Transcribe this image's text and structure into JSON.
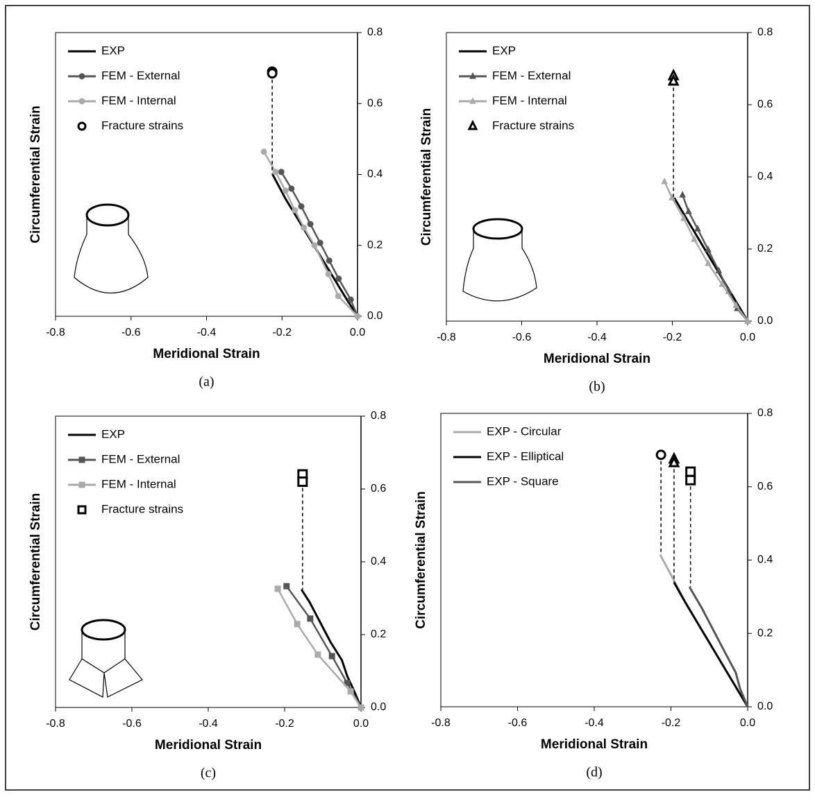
{
  "chart_data": [
    {
      "type": "line",
      "caption": "(a)",
      "xlabel": "Meridional Strain",
      "ylabel": "Circumferential Strain",
      "xlim": [
        -0.8,
        0
      ],
      "ylim": [
        0,
        0.8
      ],
      "xticks": [
        -0.8,
        -0.6,
        -0.4,
        -0.2,
        {
          "value": 0,
          "label": "0.0"
        }
      ],
      "yticks": [
        {
          "value": 0,
          "label": "0.0"
        },
        0.2,
        0.4,
        0.6,
        0.8
      ],
      "legend": "upper left",
      "series": [
        {
          "name": "EXP",
          "color": "#000000",
          "marker": "none",
          "line": true,
          "x": [
            0,
            -0.03,
            -0.07,
            -0.11,
            -0.15,
            -0.19,
            -0.225
          ],
          "values": [
            0,
            0.05,
            0.12,
            0.19,
            0.26,
            0.33,
            0.4
          ]
        },
        {
          "name": "FEM - External",
          "color": "#555555",
          "marker": "circle",
          "line": true,
          "x": [
            0,
            -0.018,
            -0.05,
            -0.075,
            -0.099,
            -0.125,
            -0.149,
            -0.175,
            -0.202
          ],
          "values": [
            0,
            0.047,
            0.106,
            0.157,
            0.207,
            0.26,
            0.31,
            0.36,
            0.407
          ]
        },
        {
          "name": "FEM - Internal",
          "color": "#aaaaaa",
          "marker": "circle",
          "line": true,
          "x": [
            0,
            -0.051,
            -0.077,
            -0.114,
            -0.142,
            -0.166,
            -0.191,
            -0.217,
            -0.248
          ],
          "values": [
            0,
            0.057,
            0.119,
            0.2,
            0.25,
            0.299,
            0.354,
            0.407,
            0.464
          ]
        },
        {
          "name": "Fracture strains",
          "color": "#000000",
          "marker": "circle",
          "line": false,
          "x": [
            -0.226,
            -0.226
          ],
          "values": [
            0.69,
            0.685
          ]
        }
      ]
    },
    {
      "type": "line",
      "caption": "(b)",
      "xlabel": "Meridional Strain",
      "ylabel": "Circumferential Strain",
      "xlim": [
        -0.8,
        0
      ],
      "ylim": [
        0,
        0.8
      ],
      "xticks": [
        -0.8,
        -0.6,
        -0.4,
        -0.2,
        {
          "value": 0,
          "label": "0.0"
        }
      ],
      "yticks": [
        {
          "value": 0,
          "label": "0.0"
        },
        0.2,
        0.4,
        0.6,
        0.8
      ],
      "legend": "upper left",
      "series": [
        {
          "name": "EXP",
          "color": "#000000",
          "marker": "none",
          "line": true,
          "x": [
            0,
            -0.04,
            -0.08,
            -0.12,
            -0.16,
            -0.195
          ],
          "values": [
            0,
            0.07,
            0.14,
            0.21,
            0.28,
            0.342
          ]
        },
        {
          "name": "FEM - External",
          "color": "#555555",
          "marker": "triangle",
          "line": true,
          "x": [
            0,
            -0.028,
            -0.05,
            -0.077,
            -0.105,
            -0.133,
            -0.157,
            -0.173
          ],
          "values": [
            0,
            0.035,
            0.083,
            0.14,
            0.198,
            0.256,
            0.304,
            0.35
          ]
        },
        {
          "name": "FEM - Internal",
          "color": "#aaaaaa",
          "marker": "triangle",
          "line": true,
          "x": [
            0,
            -0.031,
            -0.068,
            -0.105,
            -0.142,
            -0.17,
            -0.201,
            -0.221
          ],
          "values": [
            0,
            0.044,
            0.102,
            0.16,
            0.227,
            0.285,
            0.342,
            0.387
          ]
        },
        {
          "name": "Fracture strains",
          "color": "#000000",
          "marker": "triangle",
          "line": false,
          "x": [
            -0.197,
            -0.197
          ],
          "values": [
            0.68,
            0.665
          ]
        }
      ]
    },
    {
      "type": "line",
      "caption": "(c)",
      "xlabel": "Meridional Strain",
      "ylabel": "Circumferential Strain",
      "xlim": [
        -0.8,
        0
      ],
      "ylim": [
        0,
        0.8
      ],
      "xticks": [
        -0.8,
        -0.6,
        -0.4,
        -0.2,
        {
          "value": 0,
          "label": "0.0"
        }
      ],
      "yticks": [
        {
          "value": 0,
          "label": "0.0"
        },
        0.2,
        0.4,
        0.6,
        0.8
      ],
      "legend": "upper left",
      "series": [
        {
          "name": "EXP",
          "color": "#000000",
          "marker": "none",
          "line": true,
          "x": [
            0,
            -0.02,
            -0.036,
            -0.05,
            -0.08,
            -0.11,
            -0.135,
            -0.156
          ],
          "values": [
            0,
            0.05,
            0.086,
            0.13,
            0.18,
            0.24,
            0.29,
            0.324
          ]
        },
        {
          "name": "FEM - External",
          "color": "#555555",
          "marker": "square",
          "line": true,
          "x": [
            0,
            -0.036,
            -0.076,
            -0.133,
            -0.195
          ],
          "values": [
            0,
            0.067,
            0.141,
            0.244,
            0.333
          ]
        },
        {
          "name": "FEM - Internal",
          "color": "#aaaaaa",
          "marker": "square",
          "line": true,
          "x": [
            0,
            -0.027,
            -0.113,
            -0.167,
            -0.218
          ],
          "values": [
            0,
            0.044,
            0.145,
            0.229,
            0.326
          ]
        },
        {
          "name": "Fracture strains",
          "color": "#000000",
          "marker": "square",
          "line": false,
          "x": [
            -0.153,
            -0.153
          ],
          "values": [
            0.64,
            0.62
          ]
        }
      ]
    },
    {
      "type": "line",
      "caption": "(d)",
      "xlabel": "Meridional Strain",
      "ylabel": "Circumferential Strain",
      "xlim": [
        -0.8,
        0
      ],
      "ylim": [
        0,
        0.8
      ],
      "xticks": [
        -0.8,
        -0.6,
        -0.4,
        -0.2,
        {
          "value": 0,
          "label": "0.0"
        }
      ],
      "yticks": [
        {
          "value": 0,
          "label": "0.0"
        },
        0.2,
        0.4,
        0.6,
        0.8
      ],
      "legend": "upper left",
      "series": [
        {
          "name": "EXP - Circular",
          "color": "#aaaaaa",
          "marker": "none",
          "line": true,
          "x": [
            0,
            -0.04,
            -0.08,
            -0.12,
            -0.16,
            -0.2,
            -0.228
          ],
          "values": [
            0,
            0.07,
            0.14,
            0.21,
            0.28,
            0.36,
            0.414
          ]
        },
        {
          "name": "EXP - Elliptical",
          "color": "#000000",
          "marker": "none",
          "line": true,
          "x": [
            0,
            -0.04,
            -0.08,
            -0.12,
            -0.16,
            -0.192
          ],
          "values": [
            0,
            0.07,
            0.14,
            0.21,
            0.28,
            0.339
          ]
        },
        {
          "name": "EXP - Square",
          "color": "#555555",
          "marker": "none",
          "line": true,
          "x": [
            0,
            -0.02,
            -0.031,
            -0.06,
            -0.09,
            -0.12,
            -0.152
          ],
          "values": [
            0,
            0.05,
            0.093,
            0.15,
            0.21,
            0.27,
            0.327
          ]
        },
        {
          "color": "#000000",
          "marker": "circle",
          "line": false,
          "x": [
            -0.226
          ],
          "values": [
            0.687
          ]
        },
        {
          "color": "#000000",
          "marker": "triangle",
          "line": false,
          "x": [
            -0.192,
            -0.192
          ],
          "values": [
            0.675,
            0.665
          ]
        },
        {
          "color": "#000000",
          "marker": "square",
          "line": false,
          "x": [
            -0.149,
            -0.149
          ],
          "values": [
            0.641,
            0.618
          ]
        }
      ]
    }
  ]
}
